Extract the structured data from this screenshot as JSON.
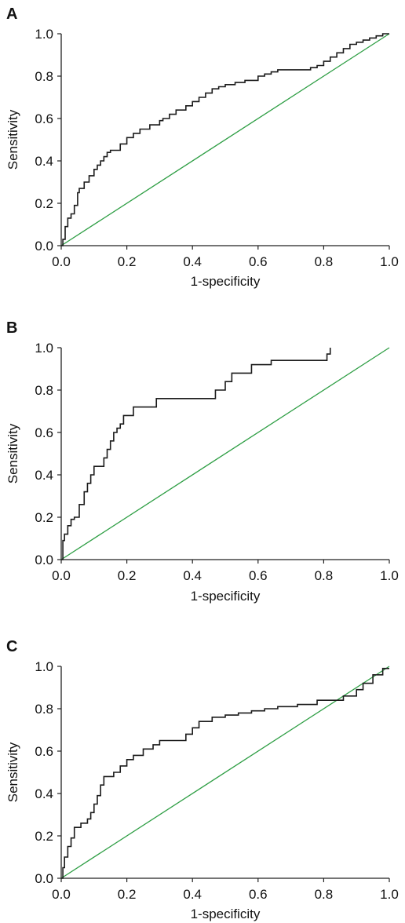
{
  "chart_data": [
    {
      "type": "line",
      "panel_label": "A",
      "xlabel": "1-specificity",
      "ylabel": "Sensitivity",
      "xlim": [
        0,
        1
      ],
      "ylim": [
        0,
        1
      ],
      "x_ticks": [
        "0.0",
        "0.2",
        "0.4",
        "0.6",
        "0.8",
        "1.0"
      ],
      "y_ticks": [
        "0.0",
        "0.2",
        "0.4",
        "0.6",
        "0.8",
        "1.0"
      ],
      "grid": false,
      "series": [
        {
          "color": "#1a1a1a",
          "x": [
            0,
            0.005,
            0.005,
            0.012,
            0.012,
            0.02,
            0.02,
            0.03,
            0.03,
            0.04,
            0.04,
            0.05,
            0.05,
            0.055,
            0.055,
            0.07,
            0.07,
            0.085,
            0.085,
            0.1,
            0.1,
            0.11,
            0.11,
            0.12,
            0.12,
            0.13,
            0.13,
            0.14,
            0.14,
            0.15,
            0.15,
            0.18,
            0.18,
            0.2,
            0.2,
            0.22,
            0.22,
            0.24,
            0.24,
            0.27,
            0.27,
            0.3,
            0.3,
            0.31,
            0.31,
            0.33,
            0.33,
            0.35,
            0.35,
            0.38,
            0.38,
            0.4,
            0.4,
            0.42,
            0.42,
            0.44,
            0.44,
            0.46,
            0.46,
            0.48,
            0.48,
            0.5,
            0.5,
            0.53,
            0.53,
            0.56,
            0.56,
            0.6,
            0.6,
            0.62,
            0.62,
            0.64,
            0.64,
            0.66,
            0.66,
            0.76,
            0.76,
            0.78,
            0.78,
            0.8,
            0.8,
            0.82,
            0.82,
            0.84,
            0.84,
            0.86,
            0.86,
            0.88,
            0.88,
            0.9,
            0.9,
            0.92,
            0.92,
            0.94,
            0.94,
            0.96,
            0.96,
            0.98,
            0.98,
            1.0
          ],
          "y": [
            0,
            0,
            0.03,
            0.03,
            0.09,
            0.09,
            0.13,
            0.13,
            0.15,
            0.15,
            0.19,
            0.19,
            0.25,
            0.25,
            0.27,
            0.27,
            0.3,
            0.3,
            0.33,
            0.33,
            0.36,
            0.36,
            0.38,
            0.38,
            0.4,
            0.4,
            0.42,
            0.42,
            0.44,
            0.44,
            0.45,
            0.45,
            0.48,
            0.48,
            0.51,
            0.51,
            0.53,
            0.53,
            0.55,
            0.55,
            0.57,
            0.57,
            0.59,
            0.59,
            0.6,
            0.6,
            0.62,
            0.62,
            0.64,
            0.64,
            0.66,
            0.66,
            0.68,
            0.68,
            0.7,
            0.7,
            0.72,
            0.72,
            0.74,
            0.74,
            0.75,
            0.75,
            0.76,
            0.76,
            0.77,
            0.77,
            0.78,
            0.78,
            0.8,
            0.8,
            0.81,
            0.81,
            0.82,
            0.82,
            0.83,
            0.83,
            0.84,
            0.84,
            0.85,
            0.85,
            0.87,
            0.87,
            0.89,
            0.89,
            0.91,
            0.91,
            0.93,
            0.93,
            0.95,
            0.95,
            0.96,
            0.96,
            0.97,
            0.97,
            0.98,
            0.98,
            0.99,
            0.99,
            1.0,
            1.0
          ]
        },
        {
          "color": "#2e9e44",
          "x": [
            0,
            1
          ],
          "y": [
            0,
            1
          ]
        }
      ]
    },
    {
      "type": "line",
      "panel_label": "B",
      "xlabel": "1-specificity",
      "ylabel": "Sensitivity",
      "xlim": [
        0,
        1
      ],
      "ylim": [
        0,
        1
      ],
      "x_ticks": [
        "0.0",
        "0.2",
        "0.4",
        "0.6",
        "0.8",
        "1.0"
      ],
      "y_ticks": [
        "0.0",
        "0.2",
        "0.4",
        "0.6",
        "0.8",
        "1.0"
      ],
      "grid": false,
      "series": [
        {
          "color": "#1a1a1a",
          "x": [
            0,
            0.005,
            0.005,
            0.01,
            0.01,
            0.02,
            0.02,
            0.03,
            0.03,
            0.04,
            0.04,
            0.055,
            0.055,
            0.07,
            0.07,
            0.08,
            0.08,
            0.09,
            0.09,
            0.1,
            0.1,
            0.13,
            0.13,
            0.14,
            0.14,
            0.15,
            0.15,
            0.16,
            0.16,
            0.17,
            0.17,
            0.18,
            0.18,
            0.19,
            0.19,
            0.22,
            0.22,
            0.29,
            0.29,
            0.47,
            0.47,
            0.5,
            0.5,
            0.52,
            0.52,
            0.58,
            0.58,
            0.64,
            0.64,
            0.81,
            0.81,
            0.82,
            0.82
          ],
          "y": [
            0,
            0,
            0.09,
            0.09,
            0.12,
            0.12,
            0.16,
            0.16,
            0.19,
            0.19,
            0.2,
            0.2,
            0.26,
            0.26,
            0.32,
            0.32,
            0.36,
            0.36,
            0.4,
            0.4,
            0.44,
            0.44,
            0.48,
            0.48,
            0.52,
            0.52,
            0.56,
            0.56,
            0.6,
            0.6,
            0.62,
            0.62,
            0.64,
            0.64,
            0.68,
            0.68,
            0.72,
            0.72,
            0.76,
            0.76,
            0.8,
            0.8,
            0.84,
            0.84,
            0.88,
            0.88,
            0.92,
            0.92,
            0.94,
            0.94,
            0.97,
            0.97,
            1.0
          ]
        },
        {
          "color": "#2e9e44",
          "x": [
            0,
            1
          ],
          "y": [
            0,
            1
          ]
        }
      ]
    },
    {
      "type": "line",
      "panel_label": "C",
      "xlabel": "1-specificity",
      "ylabel": "Sensitivity",
      "xlim": [
        0,
        1
      ],
      "ylim": [
        0,
        1
      ],
      "x_ticks": [
        "0.0",
        "0.2",
        "0.4",
        "0.6",
        "0.8",
        "1.0"
      ],
      "y_ticks": [
        "0.0",
        "0.2",
        "0.4",
        "0.6",
        "0.8",
        "1.0"
      ],
      "grid": false,
      "series": [
        {
          "color": "#1a1a1a",
          "x": [
            0,
            0.005,
            0.005,
            0.01,
            0.01,
            0.02,
            0.02,
            0.03,
            0.03,
            0.04,
            0.04,
            0.06,
            0.06,
            0.08,
            0.08,
            0.09,
            0.09,
            0.1,
            0.1,
            0.11,
            0.11,
            0.12,
            0.12,
            0.13,
            0.13,
            0.16,
            0.16,
            0.18,
            0.18,
            0.2,
            0.2,
            0.22,
            0.22,
            0.25,
            0.25,
            0.28,
            0.28,
            0.3,
            0.3,
            0.38,
            0.38,
            0.4,
            0.4,
            0.42,
            0.42,
            0.46,
            0.46,
            0.5,
            0.5,
            0.54,
            0.54,
            0.58,
            0.58,
            0.62,
            0.62,
            0.66,
            0.66,
            0.72,
            0.72,
            0.78,
            0.78,
            0.86,
            0.86,
            0.9,
            0.9,
            0.92,
            0.92,
            0.95,
            0.95,
            0.98,
            0.98,
            1.0
          ],
          "y": [
            0,
            0,
            0.05,
            0.05,
            0.1,
            0.1,
            0.15,
            0.15,
            0.19,
            0.19,
            0.24,
            0.24,
            0.26,
            0.26,
            0.28,
            0.28,
            0.31,
            0.31,
            0.35,
            0.35,
            0.39,
            0.39,
            0.44,
            0.44,
            0.48,
            0.48,
            0.5,
            0.5,
            0.53,
            0.53,
            0.56,
            0.56,
            0.58,
            0.58,
            0.61,
            0.61,
            0.63,
            0.63,
            0.65,
            0.65,
            0.68,
            0.68,
            0.71,
            0.71,
            0.74,
            0.74,
            0.76,
            0.76,
            0.77,
            0.77,
            0.78,
            0.78,
            0.79,
            0.79,
            0.8,
            0.8,
            0.81,
            0.81,
            0.82,
            0.82,
            0.84,
            0.84,
            0.86,
            0.86,
            0.89,
            0.89,
            0.92,
            0.92,
            0.96,
            0.96,
            0.99,
            0.99
          ]
        },
        {
          "color": "#2e9e44",
          "x": [
            0,
            1
          ],
          "y": [
            0,
            1
          ]
        }
      ]
    }
  ]
}
